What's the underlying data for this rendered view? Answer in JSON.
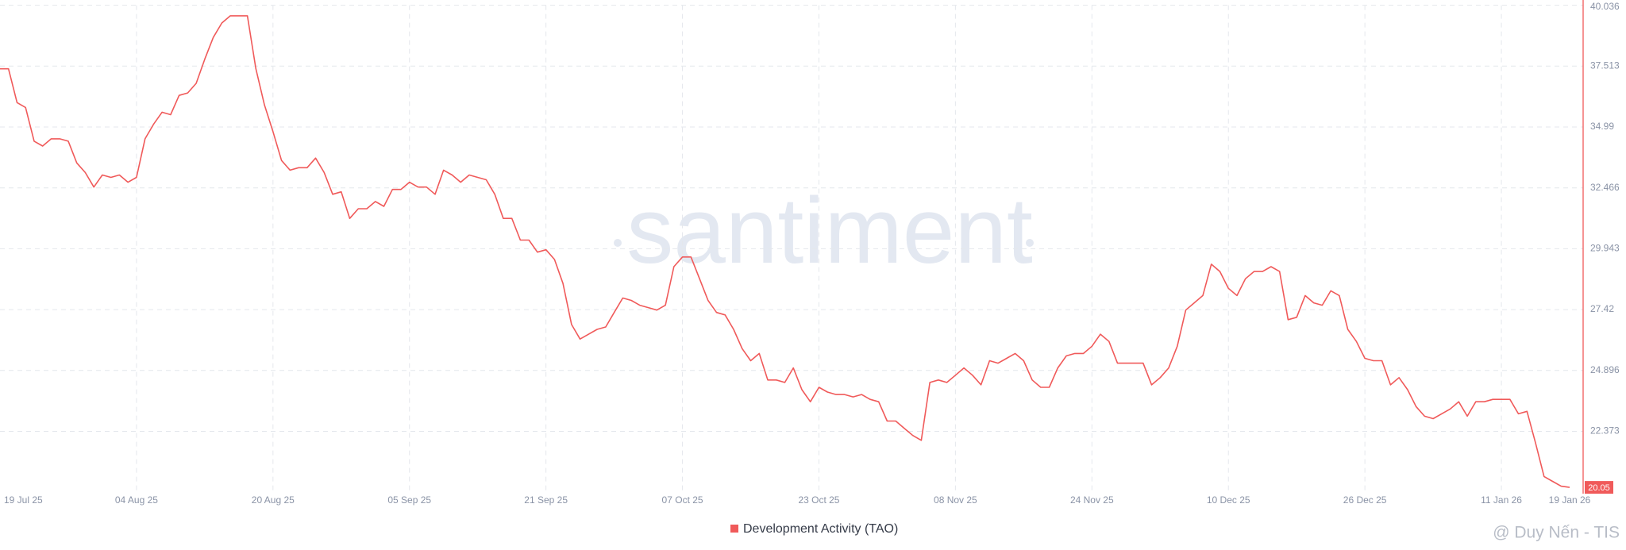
{
  "chart_data": {
    "type": "line",
    "watermark": "santiment",
    "credit": "@ Duy Nến - TIS",
    "x": [
      "2025-07-19",
      "2025-07-20",
      "2025-07-21",
      "2025-07-22",
      "2025-07-23",
      "2025-07-24",
      "2025-07-25",
      "2025-07-26",
      "2025-07-27",
      "2025-07-28",
      "2025-07-29",
      "2025-07-30",
      "2025-07-31",
      "2025-08-01",
      "2025-08-02",
      "2025-08-03",
      "2025-08-04",
      "2025-08-05",
      "2025-08-06",
      "2025-08-07",
      "2025-08-08",
      "2025-08-09",
      "2025-08-10",
      "2025-08-11",
      "2025-08-12",
      "2025-08-13",
      "2025-08-14",
      "2025-08-15",
      "2025-08-16",
      "2025-08-17",
      "2025-08-18",
      "2025-08-19",
      "2025-08-20",
      "2025-08-21",
      "2025-08-22",
      "2025-08-23",
      "2025-08-24",
      "2025-08-25",
      "2025-08-26",
      "2025-08-27",
      "2025-08-28",
      "2025-08-29",
      "2025-08-30",
      "2025-08-31",
      "2025-09-01",
      "2025-09-02",
      "2025-09-03",
      "2025-09-04",
      "2025-09-05",
      "2025-09-06",
      "2025-09-07",
      "2025-09-08",
      "2025-09-09",
      "2025-09-10",
      "2025-09-11",
      "2025-09-12",
      "2025-09-13",
      "2025-09-14",
      "2025-09-15",
      "2025-09-16",
      "2025-09-17",
      "2025-09-18",
      "2025-09-19",
      "2025-09-20",
      "2025-09-21",
      "2025-09-22",
      "2025-09-23",
      "2025-09-24",
      "2025-09-25",
      "2025-09-26",
      "2025-09-27",
      "2025-09-28",
      "2025-09-29",
      "2025-09-30",
      "2025-10-01",
      "2025-10-02",
      "2025-10-03",
      "2025-10-04",
      "2025-10-05",
      "2025-10-06",
      "2025-10-07",
      "2025-10-08",
      "2025-10-09",
      "2025-10-10",
      "2025-10-11",
      "2025-10-12",
      "2025-10-13",
      "2025-10-14",
      "2025-10-15",
      "2025-10-16",
      "2025-10-17",
      "2025-10-18",
      "2025-10-19",
      "2025-10-20",
      "2025-10-21",
      "2025-10-22",
      "2025-10-23",
      "2025-10-24",
      "2025-10-25",
      "2025-10-26",
      "2025-10-27",
      "2025-10-28",
      "2025-10-29",
      "2025-10-30",
      "2025-10-31",
      "2025-11-01",
      "2025-11-02",
      "2025-11-03",
      "2025-11-04",
      "2025-11-05",
      "2025-11-06",
      "2025-11-07",
      "2025-11-08",
      "2025-11-09",
      "2025-11-10",
      "2025-11-11",
      "2025-11-12",
      "2025-11-13",
      "2025-11-14",
      "2025-11-15",
      "2025-11-16",
      "2025-11-17",
      "2025-11-18",
      "2025-11-19",
      "2025-11-20",
      "2025-11-21",
      "2025-11-22",
      "2025-11-23",
      "2025-11-24",
      "2025-11-25",
      "2025-11-26",
      "2025-11-27",
      "2025-11-28",
      "2025-11-29",
      "2025-11-30",
      "2025-12-01",
      "2025-12-02",
      "2025-12-03",
      "2025-12-04",
      "2025-12-05",
      "2025-12-06",
      "2025-12-07",
      "2025-12-08",
      "2025-12-09",
      "2025-12-10",
      "2025-12-11",
      "2025-12-12",
      "2025-12-13",
      "2025-12-14",
      "2025-12-15",
      "2025-12-16",
      "2025-12-17",
      "2025-12-18",
      "2025-12-19",
      "2025-12-20",
      "2025-12-21",
      "2025-12-22",
      "2025-12-23",
      "2025-12-24",
      "2025-12-25",
      "2025-12-26",
      "2025-12-27",
      "2025-12-28",
      "2025-12-29",
      "2025-12-30",
      "2025-12-31",
      "2026-01-01",
      "2026-01-02",
      "2026-01-03",
      "2026-01-04",
      "2026-01-05",
      "2026-01-06",
      "2026-01-07",
      "2026-01-08",
      "2026-01-09",
      "2026-01-10",
      "2026-01-11",
      "2026-01-12",
      "2026-01-13",
      "2026-01-14",
      "2026-01-15",
      "2026-01-16",
      "2026-01-17",
      "2026-01-18",
      "2026-01-19"
    ],
    "series": [
      {
        "name": "Development Activity (TAO)",
        "color": "#f05a5a",
        "values": [
          37.4,
          37.4,
          36.0,
          35.8,
          34.4,
          34.2,
          34.5,
          34.5,
          34.4,
          33.5,
          33.1,
          32.5,
          33.0,
          32.9,
          33.0,
          32.7,
          32.9,
          34.5,
          35.1,
          35.6,
          35.5,
          36.3,
          36.4,
          36.8,
          37.8,
          38.7,
          39.3,
          39.6,
          39.6,
          39.6,
          37.4,
          35.9,
          34.8,
          33.6,
          33.2,
          33.3,
          33.3,
          33.7,
          33.1,
          32.2,
          32.3,
          31.2,
          31.6,
          31.6,
          31.9,
          31.7,
          32.4,
          32.4,
          32.7,
          32.5,
          32.5,
          32.2,
          33.2,
          33.0,
          32.7,
          33.0,
          32.9,
          32.8,
          32.2,
          31.2,
          31.2,
          30.3,
          30.3,
          29.8,
          29.9,
          29.5,
          28.5,
          26.8,
          26.2,
          26.4,
          26.6,
          26.7,
          27.3,
          27.9,
          27.8,
          27.6,
          27.5,
          27.4,
          27.6,
          29.2,
          29.6,
          29.6,
          28.7,
          27.8,
          27.3,
          27.2,
          26.6,
          25.8,
          25.3,
          25.6,
          24.5,
          24.5,
          24.4,
          25.0,
          24.1,
          23.6,
          24.2,
          24.0,
          23.9,
          23.9,
          23.8,
          23.9,
          23.7,
          23.6,
          22.8,
          22.8,
          22.5,
          22.2,
          22.0,
          24.4,
          24.5,
          24.4,
          24.7,
          25.0,
          24.7,
          24.3,
          25.3,
          25.2,
          25.4,
          25.6,
          25.3,
          24.5,
          24.2,
          24.2,
          25.0,
          25.5,
          25.6,
          25.6,
          25.9,
          26.4,
          26.1,
          25.2,
          25.2,
          25.2,
          25.2,
          24.3,
          24.6,
          25.0,
          25.9,
          27.4,
          27.7,
          28.0,
          29.3,
          29.0,
          28.3,
          28.0,
          28.7,
          29.0,
          29.0,
          29.2,
          29.0,
          27.0,
          27.1,
          28.0,
          27.7,
          27.6,
          28.2,
          28.0,
          26.6,
          26.1,
          25.4,
          25.3,
          25.3,
          24.3,
          24.6,
          24.1,
          23.4,
          23.0,
          22.9,
          23.1,
          23.3,
          23.6,
          23.0,
          23.6,
          23.6,
          23.7,
          23.7,
          23.7,
          23.1,
          23.2,
          21.9,
          20.5,
          20.3,
          20.1,
          20.05
        ]
      }
    ],
    "last_value": 20.05,
    "xlim": [
      "2025-07-19",
      "2026-01-19"
    ],
    "xticks": [
      {
        "value": "2025-07-19",
        "label": "19 Jul 25"
      },
      {
        "value": "2025-08-04",
        "label": "04 Aug 25"
      },
      {
        "value": "2025-08-20",
        "label": "20 Aug 25"
      },
      {
        "value": "2025-09-05",
        "label": "05 Sep 25"
      },
      {
        "value": "2025-09-21",
        "label": "21 Sep 25"
      },
      {
        "value": "2025-10-07",
        "label": "07 Oct 25"
      },
      {
        "value": "2025-10-23",
        "label": "23 Oct 25"
      },
      {
        "value": "2025-11-08",
        "label": "08 Nov 25"
      },
      {
        "value": "2025-11-24",
        "label": "24 Nov 25"
      },
      {
        "value": "2025-12-10",
        "label": "10 Dec 25"
      },
      {
        "value": "2025-12-26",
        "label": "26 Dec 25"
      },
      {
        "value": "2026-01-11",
        "label": "11 Jan 26"
      },
      {
        "value": "2026-01-19",
        "label": "19 Jan 26"
      }
    ],
    "ylim": [
      19.79,
      40.036
    ],
    "yticks": [
      22.373,
      24.896,
      27.42,
      29.943,
      32.466,
      34.99,
      37.513,
      40.036
    ],
    "grid": true,
    "legend": "bottom"
  }
}
